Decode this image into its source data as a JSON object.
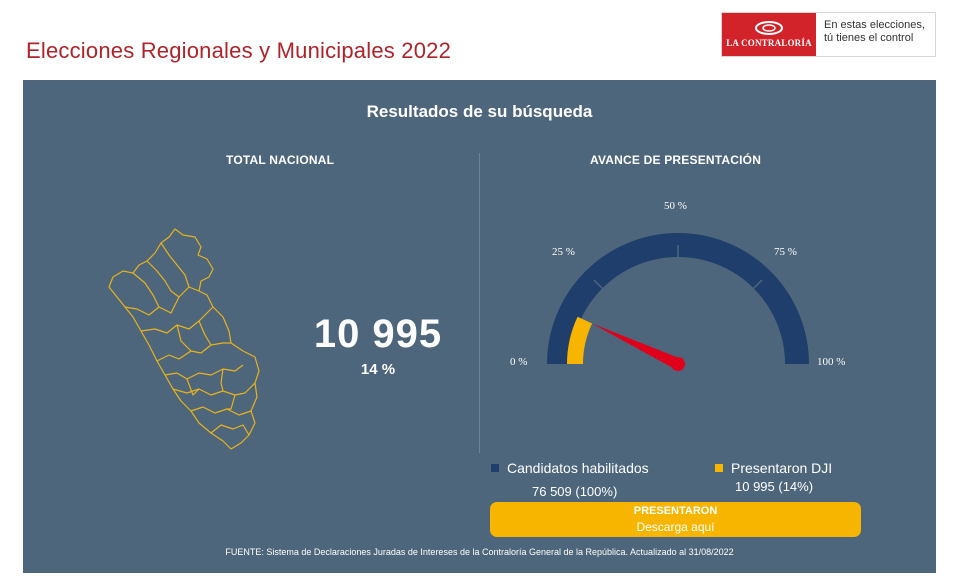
{
  "header": {
    "title": "Elecciones Regionales y Municipales 2022"
  },
  "logo": {
    "brand": "LA CONTRALORÍA",
    "slogan_line1": "En estas elecciones,",
    "slogan_line2": "tú tienes el control",
    "brand_color": "#d3232a"
  },
  "panel": {
    "title": "Resultados de su búsqueda",
    "background_color": "#4d667b"
  },
  "total_nacional": {
    "title": "TOTAL NACIONAL",
    "number": "10 995",
    "percent": "14 %",
    "map_icon": "peru-map-icon"
  },
  "avance": {
    "title": "AVANCE DE PRESENTACIÓN",
    "gauge": {
      "progress_fraction": 0.14,
      "labels": {
        "p0": "0 %",
        "p25": "25 %",
        "p50": "50 %",
        "p75": "75 %",
        "p100": "100 %"
      },
      "track_color": "#1f3e6b",
      "fill_color": "#f7b500",
      "needle_color": "#e0001b"
    },
    "legend": {
      "habilitados_label": "Candidatos habilitados",
      "habilitados_value": "76 509 (100%)",
      "presentaron_label": "Presentaron DJI",
      "presentaron_value": "10 995 (14%)"
    }
  },
  "cta": {
    "line1": "PRESENTARON",
    "line2": "Descarga aquí",
    "color": "#f7b500"
  },
  "footer": {
    "text": "FUENTE: Sistema de Declaraciones Juradas de Intereses de la Contraloría General de la República. Actualizado al   31/08/2022"
  }
}
